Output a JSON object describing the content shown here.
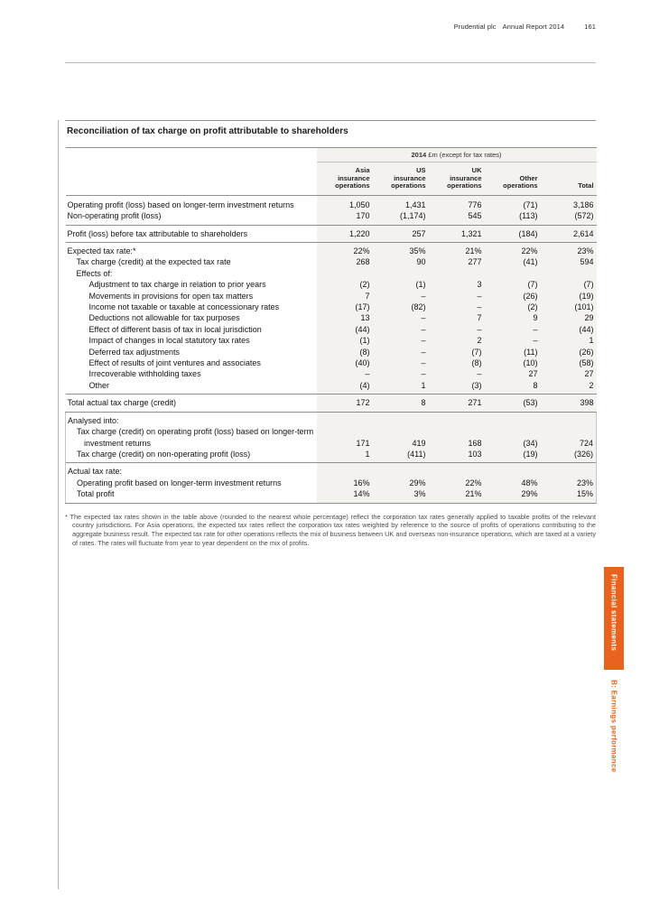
{
  "header": {
    "company": "Prudential plc",
    "report": "Annual Report 2014",
    "page_number": "161"
  },
  "side_tabs": {
    "primary": "Financial statements",
    "secondary": "B: Earnings performance",
    "accent_color": "#e8641e"
  },
  "table": {
    "title": "Reconciliation of tax charge on profit attributable to shareholders",
    "unit_band": {
      "year": "2014",
      "unit": " £m (except for tax rates)"
    },
    "columns": [
      "Asia\ninsurance\noperations",
      "US\ninsurance\noperations",
      "UK\ninsurance\noperations",
      "Other\noperations",
      "Total"
    ],
    "rows": [
      {
        "label": "Operating profit (loss) based on longer-term investment returns",
        "indent": 0,
        "classes": "first-row",
        "values": [
          "1,050",
          "1,431",
          "776",
          "(71)",
          "3,186"
        ]
      },
      {
        "label": "Non-operating profit (loss)",
        "indent": 0,
        "classes": "pad-bottom",
        "values": [
          "170",
          "(1,174)",
          "545",
          "(113)",
          "(572)"
        ]
      },
      {
        "label": "Profit (loss) before tax attributable to shareholders",
        "indent": 0,
        "classes": "rule-top pad",
        "values": [
          "1,220",
          "257",
          "1,321",
          "(184)",
          "2,614"
        ]
      },
      {
        "label": "Expected tax rate:*",
        "indent": 0,
        "classes": "rule-top pad-top",
        "values": [
          "22%",
          "35%",
          "21%",
          "22%",
          "23%"
        ]
      },
      {
        "label": "Tax charge (credit) at the expected tax rate",
        "indent": 1,
        "classes": "",
        "values": [
          "268",
          "90",
          "277",
          "(41)",
          "594"
        ]
      },
      {
        "label": "Effects of:",
        "indent": 1,
        "classes": "",
        "values": []
      },
      {
        "label": "Adjustment to tax charge in relation to prior years",
        "indent": 2,
        "classes": "",
        "values": [
          "(2)",
          "(1)",
          "3",
          "(7)",
          "(7)"
        ]
      },
      {
        "label": "Movements in provisions for open tax matters",
        "indent": 2,
        "classes": "",
        "values": [
          "7",
          "–",
          "–",
          "(26)",
          "(19)"
        ]
      },
      {
        "label": "Income not taxable or taxable at concessionary rates",
        "indent": 2,
        "classes": "",
        "values": [
          "(17)",
          "(82)",
          "–",
          "(2)",
          "(101)"
        ]
      },
      {
        "label": "Deductions not allowable for tax purposes",
        "indent": 2,
        "classes": "",
        "values": [
          "13",
          "–",
          "7",
          "9",
          "29"
        ]
      },
      {
        "label": "Effect of different basis of tax in local jurisdiction",
        "indent": 2,
        "classes": "",
        "values": [
          "(44)",
          "–",
          "–",
          "–",
          "(44)"
        ]
      },
      {
        "label": "Impact of changes in local statutory tax rates",
        "indent": 2,
        "classes": "",
        "values": [
          "(1)",
          "–",
          "2",
          "–",
          "1"
        ]
      },
      {
        "label": "Deferred tax adjustments",
        "indent": 2,
        "classes": "",
        "values": [
          "(8)",
          "–",
          "(7)",
          "(11)",
          "(26)"
        ]
      },
      {
        "label": "Effect of results of joint ventures and associates",
        "indent": 2,
        "classes": "",
        "values": [
          "(40)",
          "–",
          "(8)",
          "(10)",
          "(58)"
        ]
      },
      {
        "label": "Irrecoverable withholding taxes",
        "indent": 2,
        "classes": "",
        "values": [
          "–",
          "–",
          "–",
          "27",
          "27"
        ]
      },
      {
        "label": "Other",
        "indent": 2,
        "classes": "pad-bottom",
        "values": [
          "(4)",
          "1",
          "(3)",
          "8",
          "2"
        ]
      },
      {
        "label": "Total actual tax charge (credit)",
        "indent": 0,
        "classes": "rule-top rule-bottom pad",
        "values": [
          "172",
          "8",
          "271",
          "(53)",
          "398"
        ]
      },
      {
        "label": "Analysed into:",
        "indent": 0,
        "classes": "boxed pad-top",
        "values": []
      },
      {
        "label": "Tax charge (credit) on operating profit (loss) based on longer-term investment returns",
        "indent": 1,
        "classes": "boxed wrap-label",
        "values": [
          "171",
          "419",
          "168",
          "(34)",
          "724"
        ]
      },
      {
        "label": "Tax charge (credit) on non-operating profit (loss)",
        "indent": 1,
        "classes": "boxed pad-bottom",
        "values": [
          "1",
          "(411)",
          "103",
          "(19)",
          "(326)"
        ]
      },
      {
        "label": "Actual tax rate:",
        "indent": 0,
        "classes": "boxed rule-top pad-top",
        "values": []
      },
      {
        "label": "Operating profit based on longer-term investment returns",
        "indent": 1,
        "classes": "boxed",
        "values": [
          "16%",
          "29%",
          "22%",
          "48%",
          "23%"
        ]
      },
      {
        "label": "Total profit",
        "indent": 1,
        "classes": "boxed rule-bottom pad-bottom",
        "values": [
          "14%",
          "3%",
          "21%",
          "29%",
          "15%"
        ]
      }
    ]
  },
  "footnote": "* The expected tax rates shown in the table above (rounded to the nearest whole percentage) reflect the corporation tax rates generally applied to taxable profits of the relevant country jurisdictions. For Asia operations, the expected tax rates reflect the corporation tax rates weighted by reference to the source of profits of operations contributing to the aggregate business result. The expected tax rate for other operations reflects the mix of business between UK and overseas non-insurance operations, which are taxed at a variety of rates. The rates will fluctuate from year to year dependent on the mix of profits."
}
